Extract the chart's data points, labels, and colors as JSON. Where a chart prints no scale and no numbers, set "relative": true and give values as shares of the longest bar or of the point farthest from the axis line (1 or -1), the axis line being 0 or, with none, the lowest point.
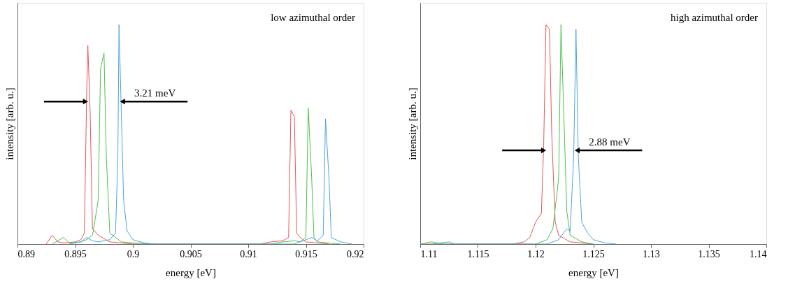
{
  "chart_data": [
    {
      "type": "line",
      "xlabel": "energy [eV]",
      "ylabel": "intensity [arb. u.]",
      "relative": true,
      "tick_labels": "x",
      "grid": false,
      "xlim": [
        0.89,
        0.92
      ],
      "xticks": [
        0.89,
        0.895,
        0.9,
        0.905,
        0.91,
        0.915,
        0.92
      ],
      "annotations": [
        "low azimuthal order",
        {
          "text": "3.21 meV",
          "x": 0.8991,
          "y": 0.65
        }
      ],
      "series": [
        {
          "color": "#e8545a",
          "x": [
            0.8925,
            0.893,
            0.8935,
            0.894,
            0.895,
            0.8955,
            0.8958,
            0.896,
            0.8961,
            0.8963,
            0.8965,
            0.897,
            0.898,
            0.899,
            0.9,
            0.911,
            0.912,
            0.913,
            0.9135,
            0.9137,
            0.914,
            0.9142,
            0.9145,
            0.915,
            0.916,
            0.917
          ],
          "values": [
            0.0,
            0.04,
            0.01,
            0.005,
            0.01,
            0.02,
            0.05,
            0.7,
            0.906,
            0.6,
            0.07,
            0.04,
            0.01,
            0.005,
            0.0,
            0.0,
            0.01,
            0.015,
            0.03,
            0.611,
            0.58,
            0.05,
            0.03,
            0.01,
            0.005,
            0.0
          ]
        },
        {
          "color": "#4cc24c",
          "x": [
            0.893,
            0.894,
            0.8945,
            0.8955,
            0.896,
            0.8965,
            0.897,
            0.8972,
            0.8975,
            0.8977,
            0.898,
            0.899,
            0.9,
            0.902,
            0.912,
            0.913,
            0.914,
            0.9145,
            0.915,
            0.9152,
            0.9155,
            0.9157,
            0.916,
            0.917,
            0.918
          ],
          "values": [
            0.0,
            0.03,
            0.005,
            0.01,
            0.02,
            0.04,
            0.2,
            0.8,
            0.871,
            0.4,
            0.05,
            0.01,
            0.005,
            0.0,
            0.0,
            0.01,
            0.015,
            0.01,
            0.03,
            0.62,
            0.3,
            0.03,
            0.01,
            0.005,
            0.0
          ]
        },
        {
          "color": "#4fa3e0",
          "x": [
            0.8945,
            0.8955,
            0.896,
            0.8965,
            0.897,
            0.898,
            0.8985,
            0.8987,
            0.8988,
            0.899,
            0.8992,
            0.8995,
            0.9,
            0.901,
            0.902,
            0.914,
            0.915,
            0.9155,
            0.916,
            0.9165,
            0.9167,
            0.917,
            0.9172,
            0.918,
            0.919
          ],
          "values": [
            0.0,
            0.01,
            0.03,
            0.015,
            0.01,
            0.02,
            0.05,
            0.4,
            1.0,
            0.6,
            0.2,
            0.06,
            0.02,
            0.005,
            0.0,
            0.0,
            0.02,
            0.03,
            0.015,
            0.04,
            0.571,
            0.3,
            0.03,
            0.01,
            0.0
          ]
        }
      ]
    },
    {
      "type": "line",
      "xlabel": "energy [eV]",
      "ylabel": "intensity [arb. u.]",
      "relative": true,
      "tick_labels": "x",
      "grid": false,
      "xlim": [
        1.11,
        1.14
      ],
      "xticks": [
        1.11,
        1.115,
        1.12,
        1.125,
        1.13,
        1.135,
        1.14
      ],
      "annotations": [
        "high azimuthal order",
        {
          "text": "2.88 meV",
          "x": 1.1236,
          "y": 0.427
        }
      ],
      "series": [
        {
          "color": "#e8545a",
          "x": [
            1.11,
            1.118,
            1.119,
            1.1195,
            1.12,
            1.1205,
            1.1207,
            1.1209,
            1.1212,
            1.1214,
            1.1217,
            1.122,
            1.123,
            1.125
          ],
          "values": [
            0.0,
            0.0,
            0.01,
            0.03,
            0.1,
            0.14,
            0.45,
            1.0,
            0.98,
            0.5,
            0.1,
            0.04,
            0.01,
            0.0
          ]
        },
        {
          "color": "#4cc24c",
          "x": [
            1.11,
            1.111,
            1.112,
            1.12,
            1.121,
            1.1215,
            1.122,
            1.1222,
            1.1225,
            1.1227,
            1.123,
            1.124,
            1.125
          ],
          "values": [
            0.0,
            0.01,
            0.0,
            0.0,
            0.02,
            0.07,
            0.3,
            1.0,
            0.5,
            0.15,
            0.04,
            0.01,
            0.0
          ]
        },
        {
          "color": "#4fa3e0",
          "x": [
            1.111,
            1.1125,
            1.113,
            1.121,
            1.122,
            1.1227,
            1.123,
            1.1233,
            1.1235,
            1.1237,
            1.124,
            1.1245,
            1.125,
            1.126,
            1.127
          ],
          "values": [
            0.0,
            0.01,
            0.0,
            0.0,
            0.02,
            0.07,
            0.06,
            0.4,
            0.98,
            0.4,
            0.1,
            0.05,
            0.02,
            0.005,
            0.0
          ]
        }
      ]
    }
  ]
}
